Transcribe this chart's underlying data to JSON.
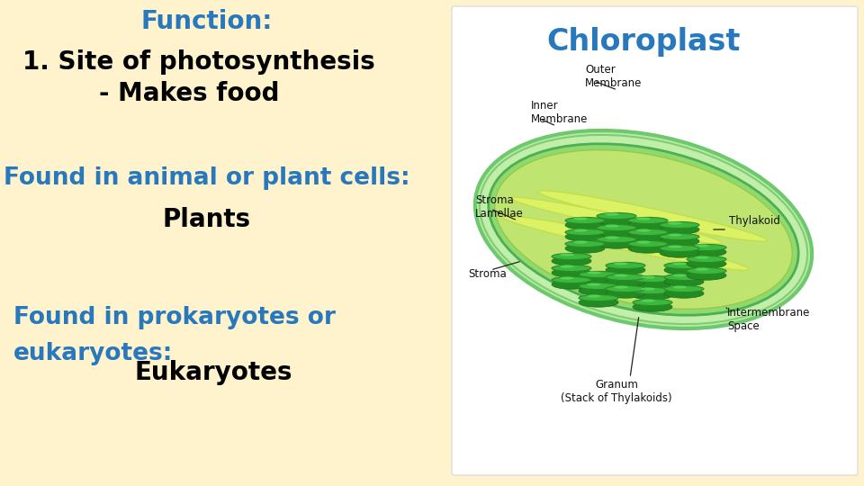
{
  "background_color": "#FEF3CC",
  "image_box_color": "#FFFFFF",
  "title_text": "Function:",
  "title_color": "#2878BE",
  "title_fontsize": 20,
  "line1_text": "1. Site of photosynthesis",
  "line1_color": "#000000",
  "line1_fontsize": 20,
  "line2_text": "     - Makes food",
  "line2_color": "#000000",
  "line2_fontsize": 20,
  "line3_text": "Found in animal or plant cells:",
  "line3_color": "#2878BE",
  "line3_fontsize": 19,
  "line4_text": "Plants",
  "line4_color": "#000000",
  "line4_fontsize": 20,
  "line5_text": "Found in prokaryotes or",
  "line5_color": "#2878BE",
  "line5_fontsize": 19,
  "line6_text": "eukaryotes:",
  "line6_color": "#2878BE",
  "line6_fontsize": 19,
  "line7_text": "Eukaryotes",
  "line7_color": "#000000",
  "line7_fontsize": 20,
  "chloroplast_title": "Chloroplast",
  "chloroplast_title_color": "#2878BE",
  "chloroplast_title_fontsize": 24
}
